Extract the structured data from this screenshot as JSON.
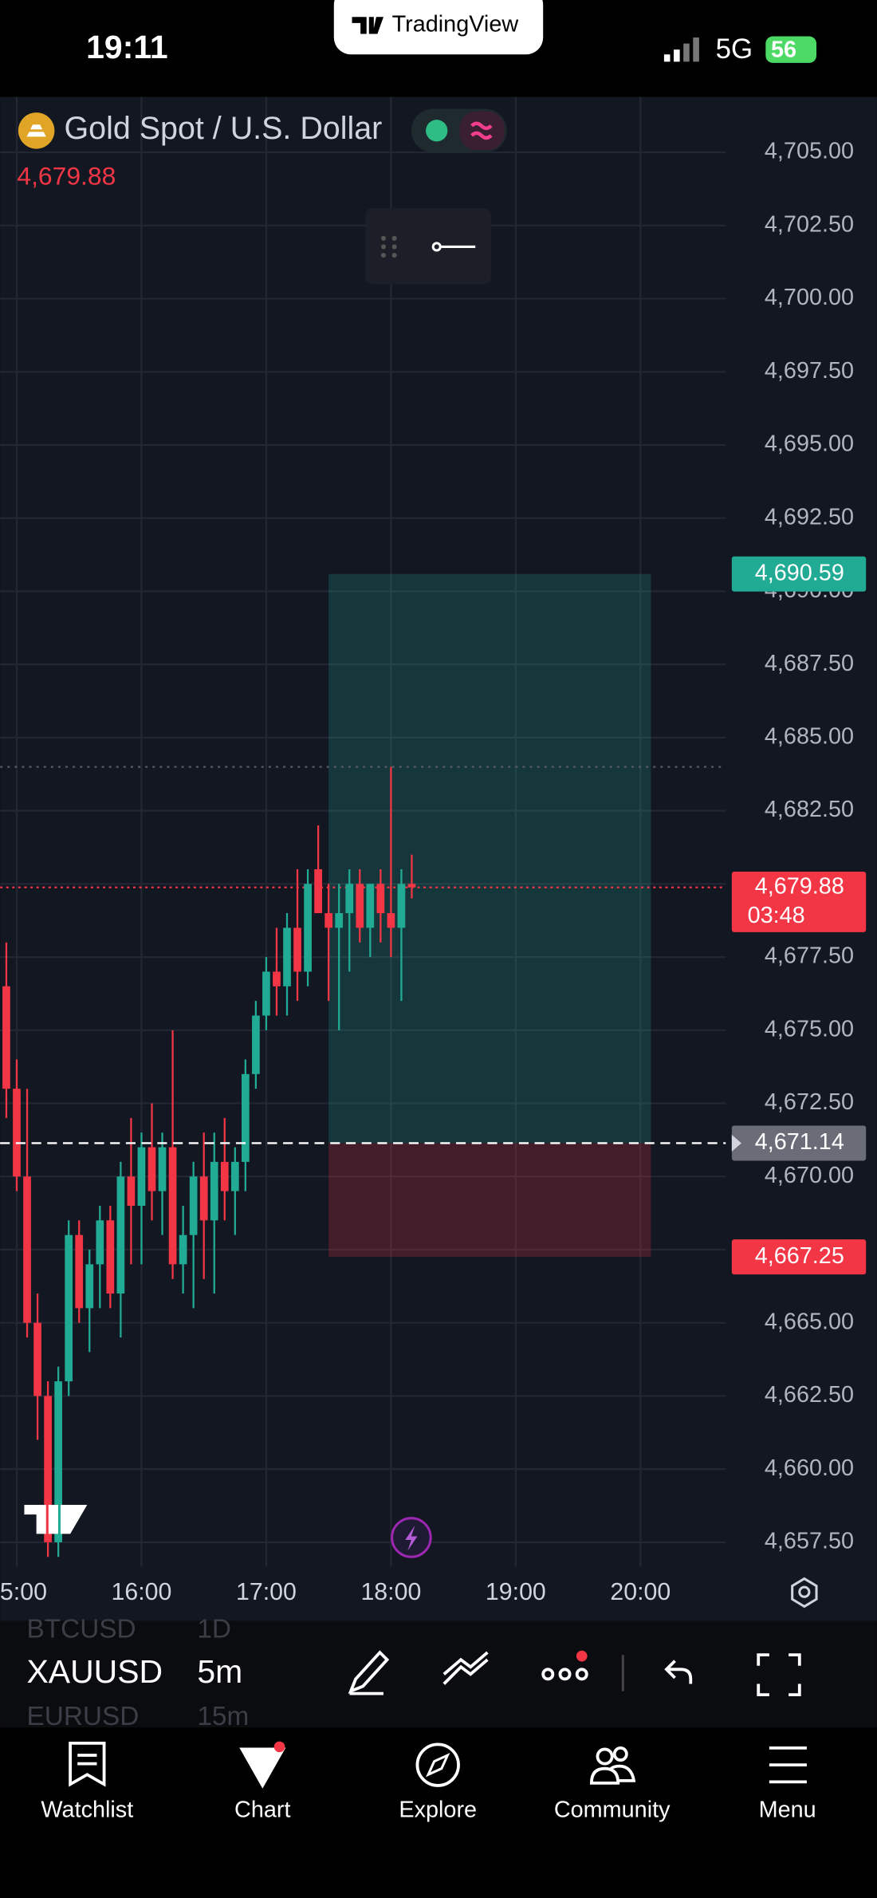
{
  "status_bar": {
    "time": "19:11",
    "app": "TradingView",
    "network": "5G",
    "battery": "56"
  },
  "chart_data": {
    "type": "candlestick",
    "title": "Gold Spot / U.S. Dollar",
    "price_line": {
      "value": 4679.88,
      "label": "4,679.88",
      "countdown": "03:48"
    },
    "up_color": "#22ab94",
    "down_color": "#f23645",
    "x": [
      "14:55",
      "15:00",
      "15:05",
      "15:10",
      "15:15",
      "15:20",
      "15:25",
      "15:30",
      "15:35",
      "15:40",
      "15:45",
      "15:50",
      "15:55",
      "16:00",
      "16:05",
      "16:10",
      "16:15",
      "16:20",
      "16:25",
      "16:30",
      "16:35",
      "16:40",
      "16:45",
      "16:50",
      "16:55",
      "17:00",
      "17:05",
      "17:10",
      "17:15",
      "17:20",
      "17:25",
      "17:30",
      "17:35",
      "17:40",
      "17:45",
      "17:50",
      "17:55",
      "18:00",
      "18:05",
      "18:10"
    ],
    "open": [
      4676.5,
      4673.0,
      4670.0,
      4665.0,
      4662.5,
      4657.5,
      4663.0,
      4668.0,
      4665.5,
      4667.0,
      4668.5,
      4666.0,
      4670.0,
      4669.0,
      4671.0,
      4669.5,
      4671.0,
      4667.0,
      4668.0,
      4670.0,
      4668.5,
      4670.5,
      4669.5,
      4670.5,
      4673.5,
      4675.5,
      4677.0,
      4676.5,
      4678.5,
      4677.0,
      4680.5,
      4679.0,
      4678.5,
      4679.0,
      4680.0,
      4678.5,
      4680.0,
      4679.0,
      4678.5,
      4680.0
    ],
    "high": [
      4678.0,
      4674.0,
      4673.0,
      4666.0,
      4663.0,
      4663.5,
      4668.5,
      4668.5,
      4667.5,
      4669.0,
      4669.0,
      4670.5,
      4672.0,
      4671.5,
      4672.5,
      4671.5,
      4675.0,
      4669.0,
      4670.5,
      4671.5,
      4671.5,
      4672.0,
      4671.0,
      4674.0,
      4676.0,
      4677.5,
      4678.5,
      4679.0,
      4680.5,
      4680.5,
      4682.0,
      4680.0,
      4680.0,
      4680.5,
      4680.5,
      4680.0,
      4680.5,
      4684.0,
      4680.5,
      4681.0
    ],
    "low": [
      4672.0,
      4669.5,
      4664.5,
      4661.0,
      4657.0,
      4657.0,
      4662.5,
      4665.0,
      4664.0,
      4665.5,
      4665.5,
      4664.5,
      4667.0,
      4667.0,
      4668.5,
      4668.0,
      4666.5,
      4666.0,
      4665.5,
      4666.5,
      4666.0,
      4668.5,
      4668.0,
      4669.5,
      4673.0,
      4675.0,
      4675.5,
      4675.5,
      4676.0,
      4676.5,
      4679.0,
      4676.0,
      4675.0,
      4677.0,
      4678.0,
      4677.5,
      4678.0,
      4677.5,
      4676.0,
      4679.5
    ],
    "close": [
      4673.0,
      4670.0,
      4665.0,
      4662.5,
      4657.5,
      4663.0,
      4668.0,
      4665.5,
      4667.0,
      4668.5,
      4666.0,
      4670.0,
      4669.0,
      4671.0,
      4669.5,
      4671.0,
      4667.0,
      4668.0,
      4670.0,
      4668.5,
      4670.5,
      4669.5,
      4670.5,
      4673.5,
      4675.5,
      4677.0,
      4676.5,
      4678.5,
      4677.0,
      4680.0,
      4679.0,
      4678.5,
      4679.0,
      4680.0,
      4678.5,
      4680.0,
      4679.0,
      4678.5,
      4680.0,
      4679.88
    ],
    "position": {
      "start": "17:30",
      "end": "20:05",
      "target": {
        "value": 4690.59,
        "label": "4,690.59"
      },
      "entry": {
        "value": 4671.14,
        "label": "4,671.14"
      },
      "stop": {
        "value": 4667.25,
        "label": "4,667.25"
      }
    },
    "xlim": [
      "14:52",
      "20:41"
    ],
    "xticks": [
      "15:00",
      "16:00",
      "17:00",
      "18:00",
      "19:00",
      "20:00"
    ],
    "ylim": [
      4656.67,
      4706.9
    ],
    "yticks": [
      {
        "value": 4657.5,
        "label": "4,657.50"
      },
      {
        "value": 4660,
        "label": "4,660.00"
      },
      {
        "value": 4662.5,
        "label": "4,662.50"
      },
      {
        "value": 4665,
        "label": "4,665.00"
      },
      {
        "value": 4667.5,
        "label": "4,667.50"
      },
      {
        "value": 4670,
        "label": "4,670.00"
      },
      {
        "value": 4672.5,
        "label": "4,672.50"
      },
      {
        "value": 4675,
        "label": "4,675.00"
      },
      {
        "value": 4677.5,
        "label": "4,677.50"
      },
      {
        "value": 4680,
        "label": "4,680.00"
      },
      {
        "value": 4682.5,
        "label": "4,682.50"
      },
      {
        "value": 4685,
        "label": "4,685.00"
      },
      {
        "value": 4687.5,
        "label": "4,687.50"
      },
      {
        "value": 4690,
        "label": "4,690.00"
      },
      {
        "value": 4692.5,
        "label": "4,692.50"
      },
      {
        "value": 4695,
        "label": "4,695.00"
      },
      {
        "value": 4697.5,
        "label": "4,697.50"
      },
      {
        "value": 4700,
        "label": "4,700.00"
      },
      {
        "value": 4702.5,
        "label": "4,702.50"
      },
      {
        "value": 4705,
        "label": "4,705.00"
      }
    ],
    "grid": true
  },
  "toolbar": {
    "symbols": [
      {
        "symbol": "BTCUSD",
        "interval": "1D"
      },
      {
        "symbol": "XAUUSD",
        "interval": "5m"
      },
      {
        "symbol": "EURUSD",
        "interval": "15m"
      }
    ]
  },
  "tabs": [
    "Watchlist",
    "Chart",
    "Explore",
    "Community",
    "Menu"
  ]
}
